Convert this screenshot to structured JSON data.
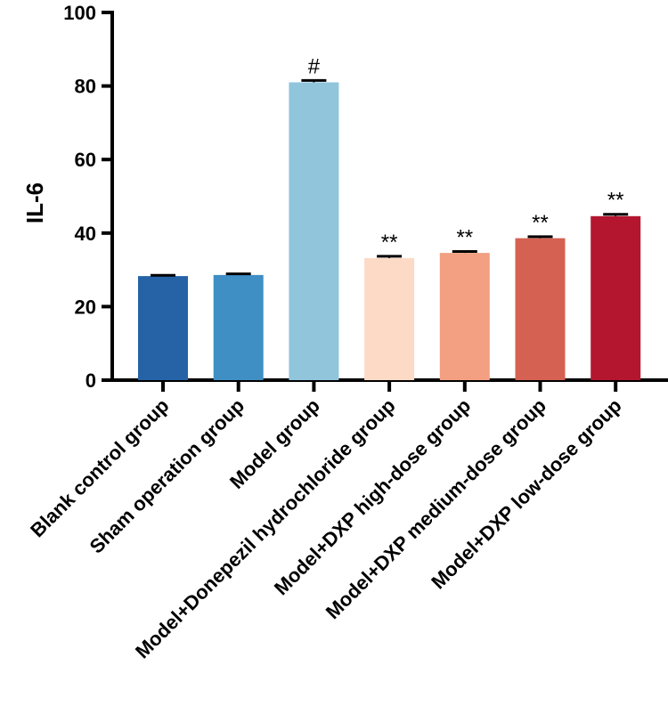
{
  "chart_data": {
    "type": "bar",
    "categories": [
      "Blank control group",
      "Sham operation group",
      "Model group",
      "Model+Donepezil hydrochloride group",
      "Model+DXP high-dose group",
      "Model+DXP medium-dose group",
      "Model+DXP low-dose group"
    ],
    "values": [
      28.3,
      28.6,
      81.0,
      33.2,
      34.6,
      38.6,
      44.6
    ],
    "errors": [
      0.2,
      0.3,
      0.5,
      0.5,
      0.4,
      0.4,
      0.5
    ],
    "annotations": [
      "",
      "",
      "#",
      "**",
      "**",
      "**",
      "**"
    ],
    "colors": [
      "#2563a6",
      "#3f8ec4",
      "#90c5dc",
      "#fcdac6",
      "#f2a081",
      "#d46151",
      "#b3162e"
    ],
    "title": "",
    "xlabel": "",
    "ylabel": "IL-6",
    "ylim": [
      0,
      100
    ],
    "yticks": [
      0,
      20,
      40,
      60,
      80,
      100
    ],
    "grid": false,
    "legend": "none"
  }
}
